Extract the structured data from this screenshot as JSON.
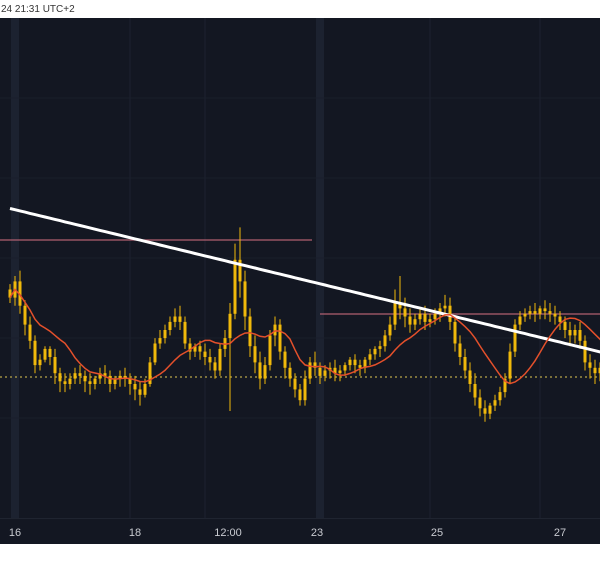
{
  "header": {
    "timestamp": "24 21:31 UTC+2"
  },
  "chart_data": {
    "type": "candlestick",
    "x_ticks": [
      "16",
      "18",
      "12:00",
      "23",
      "25",
      "27"
    ],
    "y_range": [
      0,
      100
    ],
    "colors": {
      "background": "#131722",
      "candles": "#f0b90b",
      "ma_long": "#ffffff",
      "ma_short": "#e4502b",
      "level_line": "#b06070",
      "dotted_level": "#b8a64a"
    },
    "candles": [
      [
        4,
        1,
        55,
        57,
        52,
        50
      ],
      [
        6,
        1,
        52,
        60,
        58,
        49
      ],
      [
        8,
        1,
        58,
        62,
        49,
        46
      ],
      [
        10,
        1,
        49,
        51,
        42,
        38
      ],
      [
        12,
        1,
        42,
        45,
        36,
        33
      ],
      [
        14,
        1,
        36,
        38,
        27,
        24
      ],
      [
        16,
        1,
        27,
        31,
        29,
        25
      ],
      [
        18,
        1,
        29,
        34,
        33,
        28
      ],
      [
        20,
        1,
        33,
        34,
        30,
        27
      ],
      [
        22,
        1,
        30,
        33,
        24,
        20
      ],
      [
        24,
        1,
        24,
        26,
        21,
        17
      ],
      [
        26,
        1,
        21,
        24,
        20,
        17
      ],
      [
        28,
        1,
        20,
        24,
        22,
        18
      ],
      [
        30,
        1,
        22,
        26,
        24,
        20
      ],
      [
        32,
        1,
        24,
        27,
        23,
        20
      ],
      [
        34,
        1,
        23,
        25,
        21,
        17
      ],
      [
        36,
        1,
        21,
        24,
        20,
        16
      ],
      [
        38,
        1,
        20,
        23,
        22,
        18
      ],
      [
        40,
        1,
        22,
        26,
        24,
        20
      ],
      [
        42,
        1,
        24,
        27,
        23,
        20
      ],
      [
        44,
        1,
        23,
        25,
        20,
        17
      ],
      [
        46,
        1,
        20,
        23,
        22,
        18
      ],
      [
        48,
        1,
        22,
        25,
        23,
        19
      ],
      [
        50,
        1,
        23,
        26,
        22,
        19
      ],
      [
        52,
        1,
        22,
        24,
        20,
        16
      ],
      [
        54,
        1,
        20,
        23,
        18,
        14
      ],
      [
        56,
        1,
        18,
        21,
        16,
        12
      ],
      [
        58,
        1,
        16,
        22,
        20,
        15
      ],
      [
        60,
        1,
        20,
        30,
        28,
        19
      ],
      [
        62,
        1,
        28,
        37,
        35,
        27
      ],
      [
        64,
        1,
        35,
        40,
        37,
        33
      ],
      [
        66,
        1,
        37,
        42,
        40,
        35
      ],
      [
        68,
        1,
        40,
        45,
        43,
        38
      ],
      [
        70,
        1,
        43,
        48,
        45,
        41
      ],
      [
        72,
        1,
        45,
        49,
        43,
        40
      ],
      [
        74,
        1,
        43,
        45,
        35,
        33
      ],
      [
        76,
        1,
        35,
        37,
        32,
        29
      ],
      [
        78,
        1,
        32,
        35,
        34,
        30
      ],
      [
        80,
        1,
        34,
        36,
        32,
        29
      ],
      [
        82,
        1,
        32,
        35,
        30,
        27
      ],
      [
        84,
        1,
        30,
        33,
        28,
        25
      ],
      [
        86,
        1,
        28,
        30,
        25,
        22
      ],
      [
        88,
        1,
        25,
        35,
        33,
        23
      ],
      [
        90,
        1,
        33,
        40,
        37,
        30
      ],
      [
        92,
        1,
        37,
        50,
        46,
        10
      ],
      [
        94,
        1,
        46,
        72,
        66,
        44
      ],
      [
        96,
        1,
        66,
        78,
        58,
        52
      ],
      [
        98,
        1,
        58,
        62,
        45,
        40
      ],
      [
        100,
        1,
        45,
        48,
        34,
        30
      ],
      [
        102,
        1,
        34,
        38,
        28,
        24
      ],
      [
        104,
        1,
        28,
        32,
        22,
        18
      ],
      [
        106,
        1,
        22,
        30,
        27,
        20
      ],
      [
        108,
        1,
        27,
        40,
        38,
        25
      ],
      [
        110,
        1,
        38,
        45,
        42,
        34
      ],
      [
        112,
        1,
        42,
        44,
        32,
        29
      ],
      [
        114,
        1,
        32,
        34,
        26,
        22
      ],
      [
        116,
        1,
        26,
        28,
        22,
        19
      ],
      [
        118,
        1,
        22,
        24,
        18,
        15
      ],
      [
        120,
        1,
        18,
        20,
        14,
        12
      ],
      [
        122,
        1,
        14,
        25,
        22,
        12
      ],
      [
        124,
        1,
        22,
        30,
        28,
        20
      ],
      [
        126,
        1,
        28,
        32,
        26,
        23
      ],
      [
        128,
        1,
        26,
        28,
        23,
        20
      ],
      [
        130,
        1,
        23,
        27,
        25,
        21
      ],
      [
        132,
        1,
        25,
        28,
        26,
        22
      ],
      [
        134,
        1,
        26,
        29,
        24,
        21
      ],
      [
        136,
        1,
        24,
        27,
        25,
        21
      ],
      [
        138,
        1,
        25,
        28,
        27,
        23
      ],
      [
        140,
        1,
        27,
        30,
        29,
        25
      ],
      [
        142,
        1,
        29,
        31,
        27,
        24
      ],
      [
        144,
        1,
        27,
        29,
        26,
        23
      ],
      [
        146,
        1,
        26,
        30,
        29,
        24
      ],
      [
        148,
        1,
        29,
        33,
        31,
        27
      ],
      [
        150,
        1,
        31,
        34,
        33,
        29
      ],
      [
        152,
        1,
        33,
        36,
        34,
        30
      ],
      [
        154,
        1,
        34,
        40,
        38,
        32
      ],
      [
        156,
        1,
        38,
        45,
        42,
        36
      ],
      [
        158,
        1,
        42,
        55,
        50,
        40
      ],
      [
        160,
        1,
        50,
        60,
        48,
        44
      ],
      [
        162,
        1,
        48,
        52,
        45,
        41
      ],
      [
        164,
        1,
        45,
        48,
        42,
        39
      ],
      [
        166,
        1,
        42,
        46,
        44,
        40
      ],
      [
        168,
        1,
        44,
        48,
        46,
        42
      ],
      [
        170,
        1,
        46,
        49,
        43,
        40
      ],
      [
        172,
        1,
        43,
        46,
        44,
        41
      ],
      [
        174,
        1,
        44,
        48,
        46,
        42
      ],
      [
        176,
        1,
        46,
        50,
        48,
        43
      ],
      [
        178,
        1,
        48,
        53,
        49,
        45
      ],
      [
        180,
        1,
        49,
        52,
        43,
        40
      ],
      [
        182,
        1,
        43,
        45,
        35,
        32
      ],
      [
        184,
        1,
        35,
        38,
        30,
        27
      ],
      [
        186,
        1,
        30,
        33,
        25,
        22
      ],
      [
        188,
        1,
        25,
        28,
        20,
        17
      ],
      [
        190,
        1,
        20,
        24,
        15,
        12
      ],
      [
        192,
        1,
        15,
        18,
        11,
        8
      ],
      [
        194,
        1,
        11,
        14,
        9,
        6
      ],
      [
        196,
        1,
        9,
        13,
        12,
        7
      ],
      [
        198,
        1,
        12,
        16,
        14,
        10
      ],
      [
        200,
        1,
        14,
        19,
        17,
        12
      ],
      [
        202,
        1,
        17,
        24,
        22,
        15
      ],
      [
        204,
        1,
        22,
        35,
        32,
        20
      ],
      [
        206,
        1,
        32,
        44,
        42,
        30
      ],
      [
        208,
        1,
        42,
        47,
        45,
        40
      ],
      [
        210,
        1,
        45,
        48,
        46,
        43
      ],
      [
        212,
        1,
        46,
        49,
        47,
        44
      ],
      [
        214,
        1,
        47,
        50,
        46,
        43
      ],
      [
        216,
        1,
        46,
        49,
        48,
        44
      ],
      [
        218,
        1,
        48,
        51,
        47,
        44
      ],
      [
        220,
        1,
        47,
        50,
        46,
        43
      ],
      [
        222,
        1,
        46,
        49,
        45,
        42
      ],
      [
        224,
        1,
        45,
        47,
        43,
        40
      ],
      [
        226,
        1,
        43,
        45,
        40,
        37
      ],
      [
        228,
        1,
        40,
        43,
        38,
        34
      ],
      [
        230,
        1,
        38,
        42,
        40,
        35
      ],
      [
        232,
        1,
        40,
        43,
        36,
        33
      ],
      [
        234,
        1,
        36,
        38,
        28,
        25
      ],
      [
        236,
        1,
        28,
        31,
        26,
        22
      ],
      [
        238,
        1,
        26,
        29,
        24,
        20
      ],
      [
        240,
        1,
        24,
        28,
        26,
        21
      ],
      [
        242,
        1,
        26,
        30,
        22,
        18
      ]
    ]
  }
}
